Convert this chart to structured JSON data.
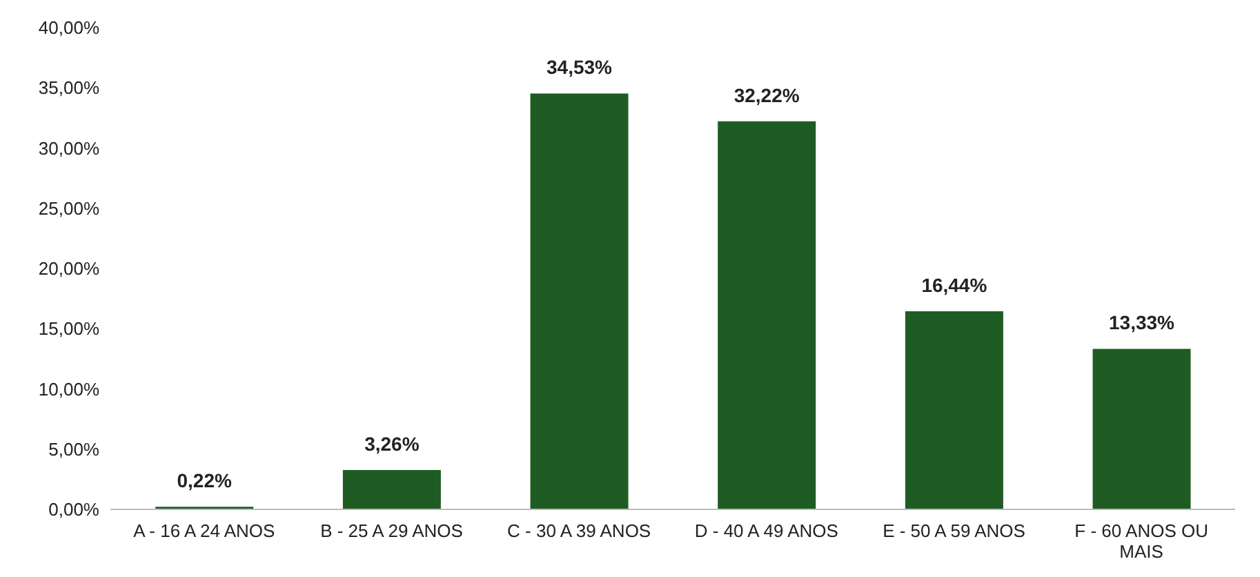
{
  "chart_data": {
    "type": "bar",
    "categories": [
      "A - 16 A 24 ANOS",
      "B - 25 A 29 ANOS",
      "C - 30 A 39 ANOS",
      "D - 40 A 49 ANOS",
      "E - 50 A 59 ANOS",
      "F - 60 ANOS OU MAIS"
    ],
    "values": [
      0.22,
      3.26,
      34.53,
      32.22,
      16.44,
      13.33
    ],
    "value_labels": [
      "0,22%",
      "3,26%",
      "34,53%",
      "32,22%",
      "16,44%",
      "13,33%"
    ],
    "color": "#1f5c23",
    "ylim": [
      0,
      40
    ],
    "yticks": [
      {
        "value": 0,
        "label": "0,00%"
      },
      {
        "value": 5,
        "label": "5,00%"
      },
      {
        "value": 10,
        "label": "10,00%"
      },
      {
        "value": 15,
        "label": "15,00%"
      },
      {
        "value": 20,
        "label": "20,00%"
      },
      {
        "value": 25,
        "label": "25,00%"
      },
      {
        "value": 30,
        "label": "30,00%"
      },
      {
        "value": 35,
        "label": "35,00%"
      },
      {
        "value": 40,
        "label": "40,00%"
      }
    ],
    "grid": false
  }
}
